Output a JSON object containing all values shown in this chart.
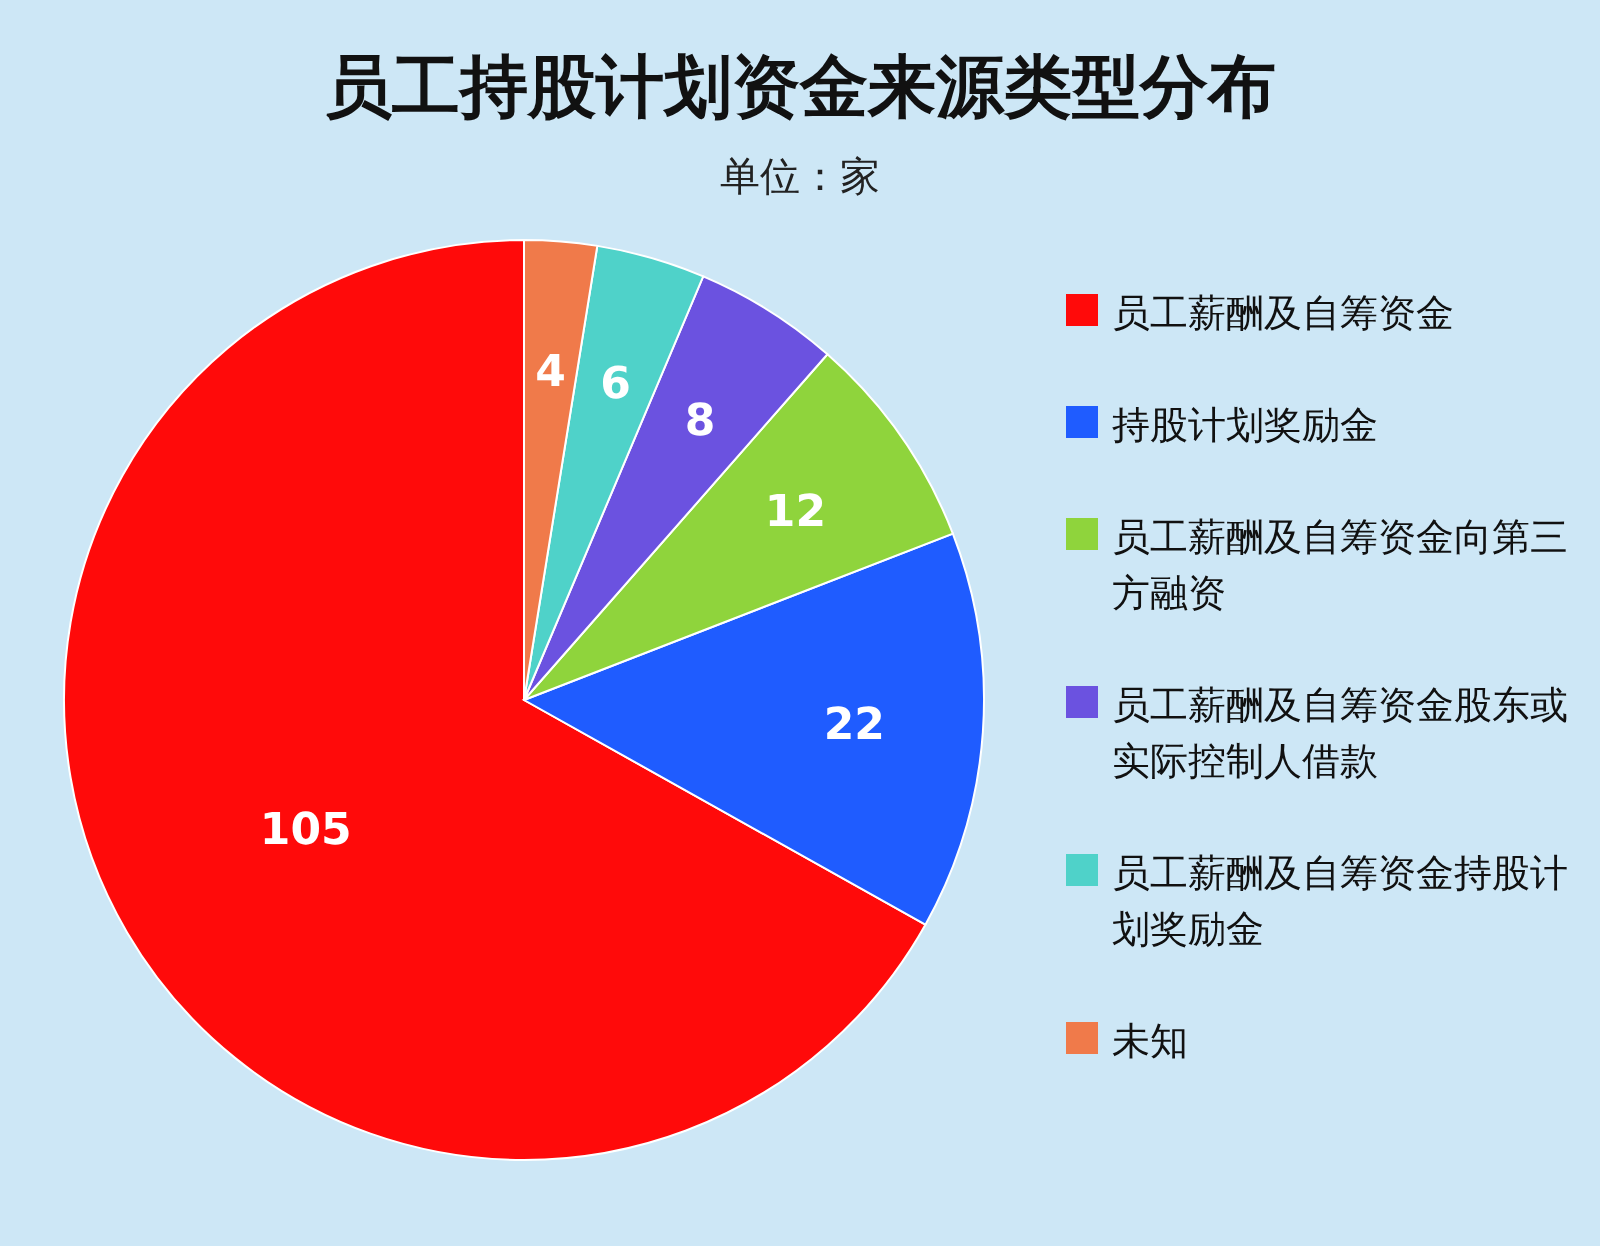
{
  "chart_data": {
    "type": "pie",
    "title": "员工持股计划资金来源类型分布",
    "subtitle": "单位：家",
    "categories": [
      "员工薪酬及自筹资金",
      "持股计划奖励金",
      "员工薪酬及自筹资金向第三方融资",
      "员工薪酬及自筹资金股东或实际控制人借款",
      "员工薪酬及自筹资金持股计划奖励金",
      "未知"
    ],
    "values": [
      105,
      22,
      12,
      8,
      6,
      4
    ],
    "colors": [
      "#ff0a0a",
      "#1f5cff",
      "#8fd43c",
      "#6b52e0",
      "#4fd2c9",
      "#f07a4a"
    ],
    "data_labels": true,
    "legend": "right"
  }
}
